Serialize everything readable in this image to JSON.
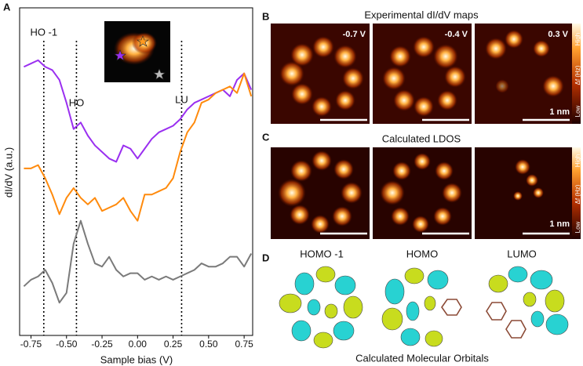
{
  "chart_data": {
    "type": "line",
    "xlabel": "Sample bias (V)",
    "ylabel": "dI/dV (a.u.)",
    "x": [
      -0.8,
      -0.75,
      -0.7,
      -0.65,
      -0.6,
      -0.55,
      -0.5,
      -0.45,
      -0.4,
      -0.35,
      -0.3,
      -0.25,
      -0.2,
      -0.15,
      -0.1,
      -0.05,
      0,
      0.05,
      0.1,
      0.15,
      0.2,
      0.25,
      0.3,
      0.35,
      0.4,
      0.45,
      0.5,
      0.55,
      0.6,
      0.65,
      0.7,
      0.75,
      0.8
    ],
    "series": [
      {
        "color": "#9a2ff0",
        "values": [
          82,
          83,
          84,
          82,
          81,
          78,
          71,
          63,
          65,
          61,
          58,
          56,
          54,
          53,
          58,
          57,
          54,
          57,
          60,
          62,
          63,
          64,
          66,
          69,
          71,
          72,
          73,
          74,
          75,
          73,
          78,
          80,
          75
        ]
      },
      {
        "color": "#ff8a0c",
        "values": [
          51,
          51,
          52,
          48,
          43,
          37,
          42,
          45,
          42,
          40,
          42,
          38,
          39,
          40,
          42,
          38,
          35,
          43,
          43,
          44,
          45,
          48,
          56,
          62,
          65,
          71,
          72,
          74,
          75,
          76,
          74,
          80,
          73
        ]
      },
      {
        "color": "#7a7a7a",
        "values": [
          15,
          17,
          18,
          20,
          16,
          10,
          13,
          28,
          35,
          28,
          22,
          21,
          24,
          20,
          18,
          19,
          19,
          17,
          18,
          17,
          18,
          17,
          18,
          19,
          20,
          22,
          21,
          21,
          22,
          24,
          24,
          21,
          25
        ]
      }
    ],
    "xlim": [
      -0.83,
      0.81
    ],
    "ylim": [
      0,
      100
    ],
    "xticks": [
      -0.75,
      {
        "value": -0.5,
        "label": "-0.50"
      },
      -0.25,
      {
        "value": 0,
        "label": "0.00"
      },
      0.25,
      {
        "value": 0.5,
        "label": "0.50"
      },
      0.75
    ],
    "markers": [
      {
        "label": "HO -1",
        "value": -0.66
      },
      {
        "label": "HO",
        "value": -0.43
      },
      {
        "label": "LU",
        "value": 0.31
      }
    ]
  },
  "panels": {
    "a": "A",
    "b": "B",
    "c": "C",
    "d": "D",
    "b_title": "Experimental dI/dV maps",
    "b_biases": [
      "-0.7 V",
      "-0.4 V",
      "0.3 V"
    ],
    "scale": "1 nm",
    "colorbar": {
      "high": "High",
      "unit": "Δf (Hz)",
      "low": "Low"
    },
    "c_title": "Calculated LDOS",
    "d_labels": [
      "HOMO -1",
      "HOMO",
      "LUMO"
    ],
    "d_caption": "Calculated Molecular Orbitals"
  }
}
